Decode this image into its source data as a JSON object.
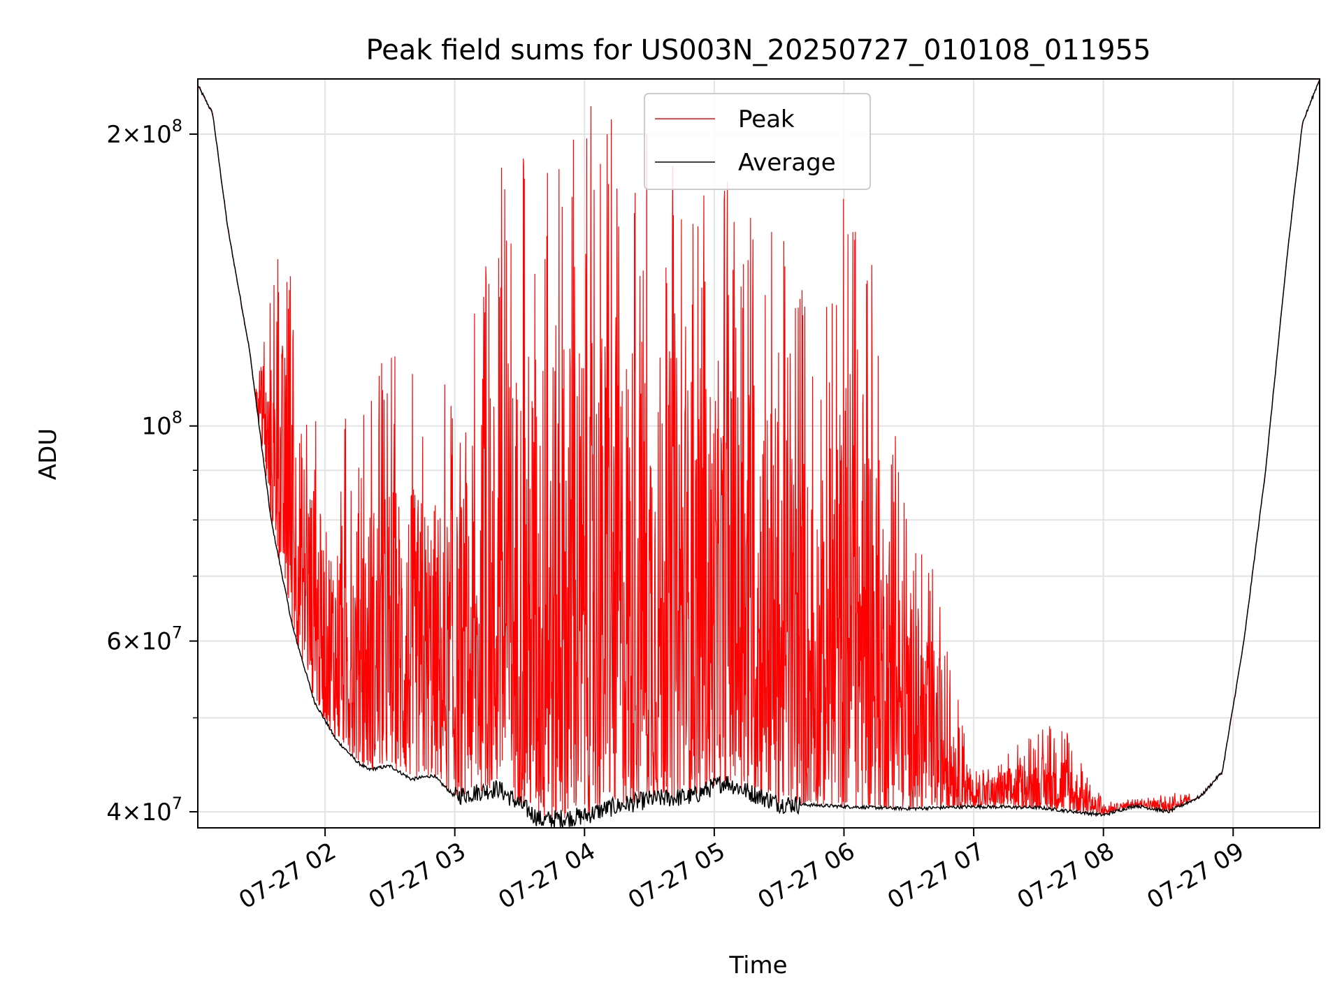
{
  "chart_data": {
    "type": "line",
    "title": "Peak field sums for US003N_20250727_010108_011955",
    "xlabel": "Time",
    "ylabel": "ADU",
    "y_scale": "log",
    "grid": true,
    "legend_position": "top-center",
    "xlim": [
      "2025-07-27 01:01:08",
      "2025-07-27 09:40:00"
    ],
    "ylim": [
      38500000,
      228000000
    ],
    "x_ticks": [
      {
        "value": "2025-07-27 02:00",
        "label": "07-27 02"
      },
      {
        "value": "2025-07-27 03:00",
        "label": "07-27 03"
      },
      {
        "value": "2025-07-27 04:00",
        "label": "07-27 04"
      },
      {
        "value": "2025-07-27 05:00",
        "label": "07-27 05"
      },
      {
        "value": "2025-07-27 06:00",
        "label": "07-27 06"
      },
      {
        "value": "2025-07-27 07:00",
        "label": "07-27 07"
      },
      {
        "value": "2025-07-27 08:00",
        "label": "07-27 08"
      },
      {
        "value": "2025-07-27 09:00",
        "label": "07-27 09"
      }
    ],
    "y_ticks": [
      {
        "value": 40000000,
        "base": "4",
        "exp": "7"
      },
      {
        "value": 60000000,
        "base": "6",
        "exp": "7"
      },
      {
        "value": 100000000,
        "base": "",
        "exp": "8"
      },
      {
        "value": 200000000,
        "base": "2",
        "exp": "8"
      }
    ],
    "y_minor_ticks": [
      50000000,
      70000000,
      80000000,
      90000000
    ],
    "series": [
      {
        "name": "Peak",
        "color": "#ff0000",
        "style": "noisy spikes above average",
        "envelope": [
          {
            "x": "2025-07-27 01:25",
            "y": 100000000
          },
          {
            "x": "2025-07-27 01:40",
            "y": 160000000
          },
          {
            "x": "2025-07-27 02:00",
            "y": 95000000
          },
          {
            "x": "2025-07-27 02:30",
            "y": 120000000
          },
          {
            "x": "2025-07-27 03:00",
            "y": 110000000
          },
          {
            "x": "2025-07-27 03:20",
            "y": 185000000
          },
          {
            "x": "2025-07-27 03:50",
            "y": 215000000
          },
          {
            "x": "2025-07-27 04:20",
            "y": 215000000
          },
          {
            "x": "2025-07-27 04:50",
            "y": 180000000
          },
          {
            "x": "2025-07-27 05:20",
            "y": 180000000
          },
          {
            "x": "2025-07-27 05:50",
            "y": 125000000
          },
          {
            "x": "2025-07-27 06:05",
            "y": 210000000
          },
          {
            "x": "2025-07-27 06:25",
            "y": 95000000
          },
          {
            "x": "2025-07-27 06:45",
            "y": 67000000
          },
          {
            "x": "2025-07-27 07:00",
            "y": 44000000
          },
          {
            "x": "2025-07-27 07:40",
            "y": 50000000
          },
          {
            "x": "2025-07-27 08:00",
            "y": 41000000
          },
          {
            "x": "2025-07-27 08:40",
            "y": 42000000
          }
        ]
      },
      {
        "name": "Average",
        "color": "#000000",
        "points": [
          {
            "x": "2025-07-27 01:01",
            "y": 225000000
          },
          {
            "x": "2025-07-27 01:08",
            "y": 210000000
          },
          {
            "x": "2025-07-27 01:15",
            "y": 160000000
          },
          {
            "x": "2025-07-27 01:25",
            "y": 120000000
          },
          {
            "x": "2025-07-27 01:35",
            "y": 80000000
          },
          {
            "x": "2025-07-27 01:45",
            "y": 62000000
          },
          {
            "x": "2025-07-27 01:55",
            "y": 52000000
          },
          {
            "x": "2025-07-27 02:05",
            "y": 47500000
          },
          {
            "x": "2025-07-27 02:15",
            "y": 45000000
          },
          {
            "x": "2025-07-27 02:20",
            "y": 44200000
          },
          {
            "x": "2025-07-27 02:30",
            "y": 44600000
          },
          {
            "x": "2025-07-27 02:40",
            "y": 43200000
          },
          {
            "x": "2025-07-27 02:50",
            "y": 43600000
          },
          {
            "x": "2025-07-27 03:00",
            "y": 41500000
          },
          {
            "x": "2025-07-27 03:20",
            "y": 42300000
          },
          {
            "x": "2025-07-27 03:40",
            "y": 39200000
          },
          {
            "x": "2025-07-27 04:00",
            "y": 39600000
          },
          {
            "x": "2025-07-27 04:10",
            "y": 40300000
          },
          {
            "x": "2025-07-27 04:30",
            "y": 41200000
          },
          {
            "x": "2025-07-27 04:50",
            "y": 41500000
          },
          {
            "x": "2025-07-27 05:05",
            "y": 43000000
          },
          {
            "x": "2025-07-27 05:15",
            "y": 42000000
          },
          {
            "x": "2025-07-27 05:30",
            "y": 40800000
          },
          {
            "x": "2025-07-27 06:00",
            "y": 40500000
          },
          {
            "x": "2025-07-27 06:30",
            "y": 40300000
          },
          {
            "x": "2025-07-27 07:00",
            "y": 40500000
          },
          {
            "x": "2025-07-27 07:30",
            "y": 40400000
          },
          {
            "x": "2025-07-27 08:00",
            "y": 39700000
          },
          {
            "x": "2025-07-27 08:15",
            "y": 40600000
          },
          {
            "x": "2025-07-27 08:30",
            "y": 40000000
          },
          {
            "x": "2025-07-27 08:45",
            "y": 41500000
          },
          {
            "x": "2025-07-27 08:55",
            "y": 44000000
          },
          {
            "x": "2025-07-27 09:05",
            "y": 60000000
          },
          {
            "x": "2025-07-27 09:15",
            "y": 90000000
          },
          {
            "x": "2025-07-27 09:25",
            "y": 150000000
          },
          {
            "x": "2025-07-27 09:32",
            "y": 205000000
          },
          {
            "x": "2025-07-27 09:40",
            "y": 228000000
          }
        ]
      }
    ]
  }
}
